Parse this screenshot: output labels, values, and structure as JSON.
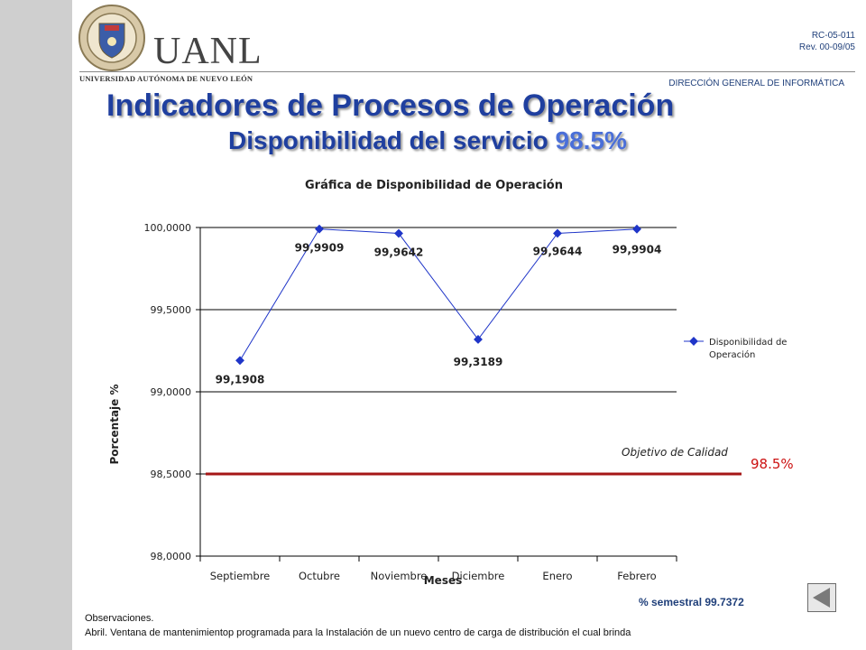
{
  "header": {
    "logo_text": "UANL",
    "logo_sub": "UNIVERSIDAD AUTÓNOMA DE NUEVO LEÓN",
    "doc_code": "RC-05-011",
    "revision": "Rev. 00-09/05",
    "department": "DIRECCIÓN GENERAL DE INFORMÁTICA"
  },
  "slide": {
    "title": "Indicadores de Procesos de Operación",
    "subtitle_prefix": "Disponibilidad  del servicio ",
    "subtitle_value": "98.5%"
  },
  "chart_data": {
    "type": "line",
    "title": "Gráfica de Disponibilidad de Operación",
    "xlabel": "Meses",
    "ylabel": "Porcentaje %",
    "categories": [
      "Septiembre",
      "Octubre",
      "Noviembre",
      "Diciembre",
      "Enero",
      "Febrero"
    ],
    "series": [
      {
        "name": "Disponibilidad de Operación",
        "values": [
          99.1908,
          99.9909,
          99.9642,
          99.3189,
          99.9644,
          99.9904
        ],
        "labels": [
          "99,1908",
          "99,9909",
          "99,9642",
          "99,3189",
          "99,9644",
          "99,9904"
        ]
      }
    ],
    "legend_lines": [
      "Disponibilidad de",
      "Operación"
    ],
    "ylim": [
      98.0,
      100.0
    ],
    "yticks": [
      98.0,
      98.5,
      99.0,
      99.5,
      100.0
    ],
    "ytick_labels": [
      "98,0000",
      "98,5000",
      "99,0000",
      "99,5000",
      "100,0000"
    ],
    "grid": true,
    "legend": "right",
    "target": {
      "label": "Objetivo de Calidad",
      "value": 98.5,
      "value_label": "98.5%"
    },
    "colors": {
      "series": "#1f35c8",
      "target": "#a51616",
      "target_text": "#cc1111"
    }
  },
  "footer": {
    "semestral": "% semestral 99.7372",
    "obs_title": "Observaciones.",
    "obs_text": "Abril. Ventana de mantenimientop programada  para la Instalación de un nuevo centro de carga de distribución el cual brinda"
  }
}
